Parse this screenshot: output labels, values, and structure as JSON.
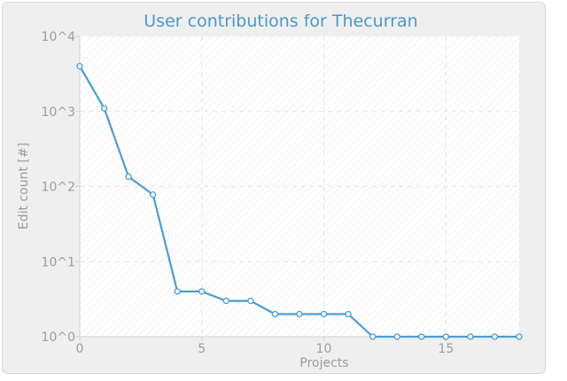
{
  "chart_data": {
    "type": "line",
    "title": "User contributions for Thecurran",
    "xlabel": "Projects",
    "ylabel": "Edit count [#]",
    "y_scale": "log",
    "xlim": [
      0,
      18
    ],
    "ylim": [
      1,
      10000
    ],
    "grid": true,
    "x_ticks": [
      "0",
      "5",
      "10",
      "15"
    ],
    "y_ticks": [
      "10^0",
      "10^1",
      "10^2",
      "10^3",
      "10^4"
    ],
    "colors": {
      "line": "#4a9cd5",
      "title": "#4d97c7"
    },
    "series": [
      {
        "x": [
          0,
          1,
          2,
          3,
          4,
          5,
          6,
          7,
          8,
          9,
          10,
          11,
          12,
          13,
          14,
          15,
          16,
          17,
          18
        ],
        "values": [
          4000,
          1100,
          135,
          78,
          4,
          4,
          3,
          3,
          2,
          2,
          2,
          2,
          1,
          1,
          1,
          1,
          1,
          1,
          1
        ]
      }
    ]
  }
}
